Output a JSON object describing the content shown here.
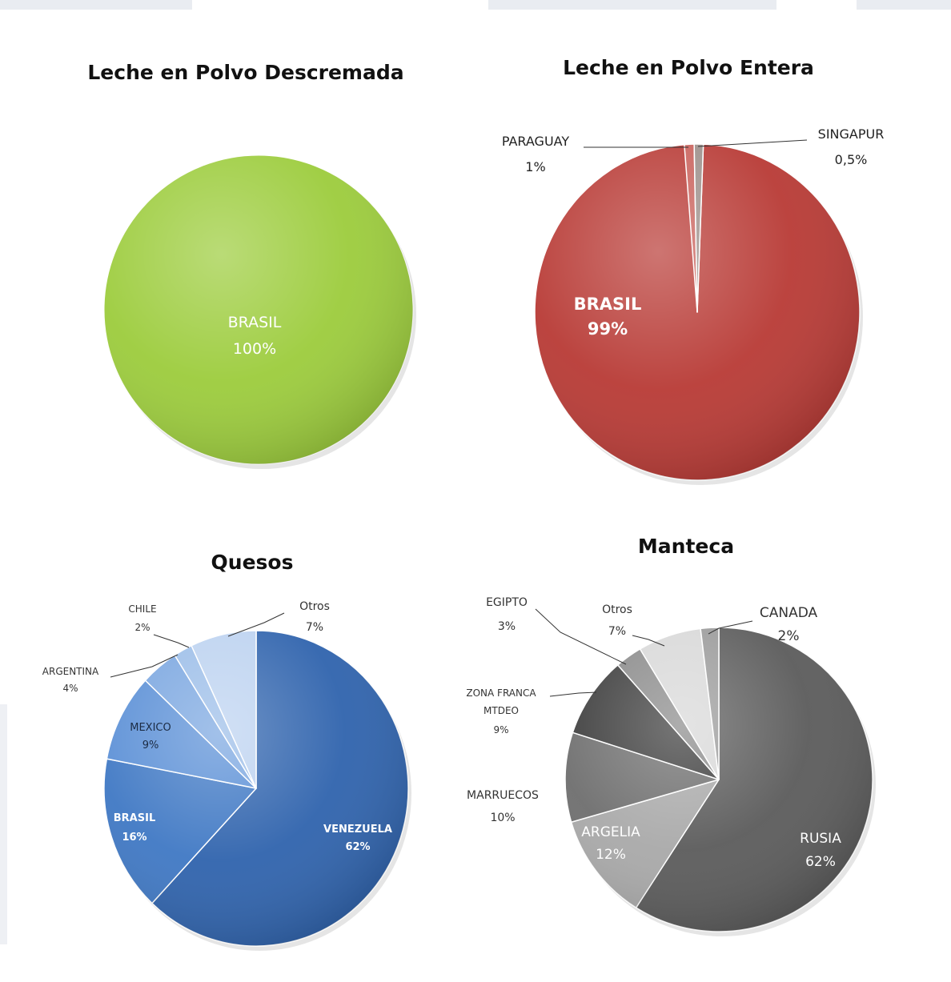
{
  "chart_data": [
    {
      "type": "pie",
      "title": "Leche en Polvo Descremada",
      "slices": [
        {
          "label": "BRASIL",
          "value": 100,
          "pct_label": "100%",
          "color": "#9ccc3c"
        }
      ]
    },
    {
      "type": "pie",
      "title": "Leche en Polvo Entera",
      "slices": [
        {
          "label": "BRASIL",
          "value": 98.5,
          "pct_label": "99%",
          "color": "#b83a35"
        },
        {
          "label": "PARAGUAY",
          "value": 1,
          "pct_label": "1%",
          "color": "#c9605a"
        },
        {
          "label": "SINGAPUR",
          "value": 0.5,
          "pct_label": "0,5%",
          "color": "#9c8f8a"
        }
      ]
    },
    {
      "type": "pie",
      "title": "Quesos",
      "slices": [
        {
          "label": "VENEZUELA",
          "value": 62,
          "pct_label": "62%",
          "color": "#2f63ad"
        },
        {
          "label": "BRASIL",
          "value": 16,
          "pct_label": "16%",
          "color": "#3f78c4"
        },
        {
          "label": "MEXICO",
          "value": 9,
          "pct_label": "9%",
          "color": "#5a8fd6"
        },
        {
          "label": "ARGENTINA",
          "value": 4,
          "pct_label": "4%",
          "color": "#7aa6e0"
        },
        {
          "label": "CHILE",
          "value": 2,
          "pct_label": "2%",
          "color": "#9bbde8"
        },
        {
          "label": "Otros",
          "value": 7,
          "pct_label": "7%",
          "color": "#bcd2f0"
        }
      ]
    },
    {
      "type": "pie",
      "title": "Manteca",
      "slices": [
        {
          "label": "RUSIA",
          "value": 62,
          "pct_label": "62%",
          "color": "#5b5b5b"
        },
        {
          "label": "ARGELIA",
          "value": 12,
          "pct_label": "12%",
          "color": "#a9a9a9"
        },
        {
          "label": "MARRUECOS",
          "value": 10,
          "pct_label": "10%",
          "color": "#6e6e6e"
        },
        {
          "label": "ZONA FRANCA MTDEO",
          "value": 9,
          "pct_label": "9%",
          "color": "#3c3c3c"
        },
        {
          "label": "EGIPTO",
          "value": 3,
          "pct_label": "3%",
          "color": "#8a8a8a"
        },
        {
          "label": "Otros",
          "value": 7,
          "pct_label": "7%",
          "color": "#d8d8d8"
        },
        {
          "label": "CANADA",
          "value": 2,
          "pct_label": "2%",
          "color": "#9a9a9a"
        }
      ]
    }
  ]
}
